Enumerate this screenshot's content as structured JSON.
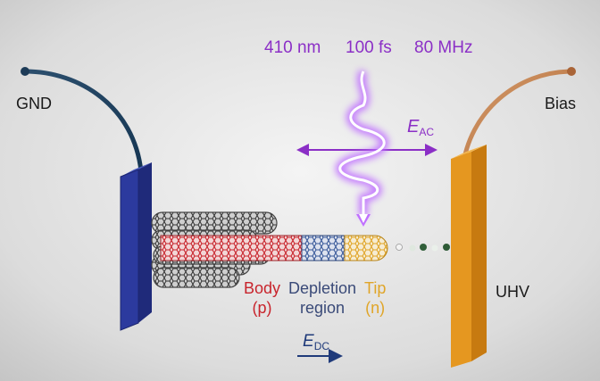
{
  "laser": {
    "wavelength": "410 nm",
    "pulse_duration": "100 fs",
    "repetition_rate": "80 MHz"
  },
  "ac_field": {
    "symbol": "E",
    "subscript": "AC"
  },
  "dc_field": {
    "symbol": "E",
    "subscript": "DC"
  },
  "electrodes": {
    "left_label": "GND",
    "right_label": "Bias",
    "right_environment": "UHV"
  },
  "nanotube_regions": {
    "body": {
      "line1": "Body",
      "line2": "(p)",
      "color": "#c8242c"
    },
    "depletion": {
      "line1": "Depletion",
      "line2": "region",
      "color": "#3a4a78"
    },
    "tip": {
      "line1": "Tip",
      "line2": "(n)",
      "color": "#e0a528"
    }
  },
  "colors": {
    "left_plate": "#2c3a9e",
    "right_plate": "#e59720",
    "laser": "#8b2fc6",
    "dc_arrow": "#1f3a7a"
  }
}
